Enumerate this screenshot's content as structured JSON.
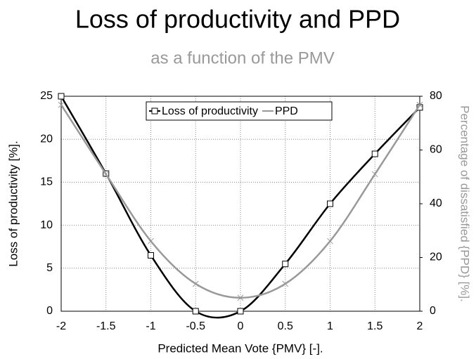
{
  "chart_data": {
    "type": "line",
    "title": "Loss of productivity and PPD",
    "subtitle": "as a function of the PMV",
    "xlabel": "Predicted Mean Vote {PMV} [-].",
    "ylabel": "Loss of productivity [%].",
    "y2label": "Percentage of dissatisfied {PPD} [%].",
    "x": [
      -2,
      -1.5,
      -1,
      -0.5,
      0,
      0.5,
      1,
      1.5,
      2
    ],
    "series": [
      {
        "name": "Loss of productivity",
        "color": "#000000",
        "marker": "square",
        "values": [
          25,
          16,
          6.5,
          0,
          0,
          5.5,
          12.5,
          18.3,
          23.7
        ]
      },
      {
        "name": "PPD",
        "color": "#999999",
        "marker": "x",
        "axis": "y2",
        "values": [
          76.8,
          51,
          26.1,
          10.2,
          5,
          10.2,
          26.1,
          51,
          76.8
        ]
      }
    ],
    "xlim": [
      -2,
      2
    ],
    "xticks": [
      -2,
      -1.5,
      -1,
      -0.5,
      0,
      0.5,
      1,
      1.5,
      2
    ],
    "ylim": [
      0,
      25
    ],
    "yticks": [
      0,
      5,
      10,
      15,
      20,
      25
    ],
    "y2lim": [
      0,
      80
    ],
    "y2ticks": [
      0,
      20,
      40,
      60,
      80
    ],
    "grid": true,
    "legend": "top"
  }
}
